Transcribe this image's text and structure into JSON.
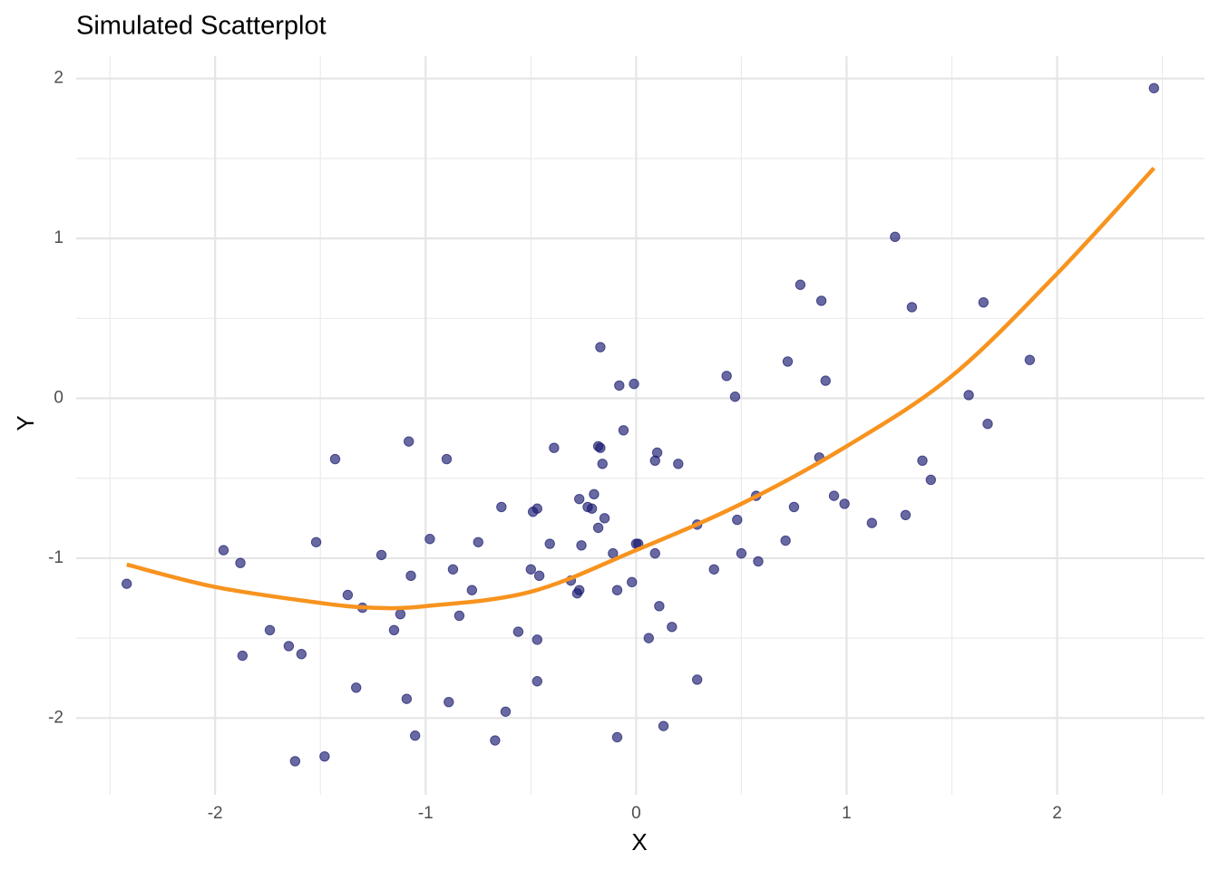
{
  "chart_data": {
    "type": "scatter",
    "title": "Simulated Scatterplot",
    "x_label": "X",
    "y_label": "Y",
    "x": [
      -2.42,
      -1.96,
      -1.88,
      -1.87,
      -1.74,
      -1.65,
      -1.62,
      -1.59,
      -1.52,
      -1.48,
      -1.43,
      -1.37,
      -1.33,
      -1.3,
      -1.21,
      -1.15,
      -1.12,
      -1.09,
      -1.08,
      -1.07,
      -1.05,
      -0.98,
      -0.9,
      -0.89,
      -0.87,
      -0.84,
      -0.78,
      -0.75,
      -0.67,
      -0.64,
      -0.62,
      -0.56,
      -0.5,
      -0.49,
      -0.47,
      -0.47,
      -0.47,
      -0.46,
      -0.41,
      -0.39,
      -0.31,
      -0.28,
      -0.27,
      -0.27,
      -0.26,
      -0.23,
      -0.21,
      -0.2,
      -0.18,
      -0.18,
      -0.17,
      -0.17,
      -0.16,
      -0.15,
      -0.11,
      -0.09,
      -0.09,
      -0.08,
      -0.06,
      -0.02,
      -0.01,
      0.0,
      0.01,
      0.06,
      0.09,
      0.09,
      0.1,
      0.11,
      0.13,
      0.17,
      0.2,
      0.29,
      0.29,
      0.37,
      0.43,
      0.47,
      0.48,
      0.5,
      0.57,
      0.58,
      0.71,
      0.72,
      0.75,
      0.78,
      0.87,
      0.88,
      0.9,
      0.94,
      0.99,
      1.12,
      1.23,
      1.28,
      1.31,
      1.36,
      1.4,
      1.58,
      1.65,
      1.67,
      1.87,
      2.46
    ],
    "values": [
      -1.16,
      -0.95,
      -1.03,
      -1.61,
      -1.45,
      -1.55,
      -2.27,
      -1.6,
      -0.9,
      -2.24,
      -0.38,
      -1.23,
      -1.81,
      -1.31,
      -0.98,
      -1.45,
      -1.35,
      -1.88,
      -0.27,
      -1.11,
      -2.11,
      -0.88,
      -0.38,
      -1.9,
      -1.07,
      -1.36,
      -1.2,
      -0.9,
      -2.14,
      -0.68,
      -1.96,
      -1.46,
      -1.07,
      -0.71,
      -0.69,
      -1.51,
      -1.77,
      -1.11,
      -0.91,
      -0.31,
      -1.14,
      -1.22,
      -1.2,
      -0.63,
      -0.92,
      -0.68,
      -0.69,
      -0.6,
      -0.81,
      -0.3,
      -0.31,
      0.32,
      -0.41,
      -0.75,
      -0.97,
      -2.12,
      -1.2,
      0.08,
      -0.2,
      -1.15,
      0.09,
      -0.91,
      -0.91,
      -1.5,
      -0.97,
      -0.39,
      -0.34,
      -1.3,
      -2.05,
      -1.43,
      -0.41,
      -1.76,
      -0.79,
      -1.07,
      0.14,
      0.01,
      -0.76,
      -0.97,
      -0.61,
      -1.02,
      -0.89,
      0.23,
      -0.68,
      0.71,
      -0.37,
      0.61,
      0.11,
      -0.61,
      -0.66,
      -0.78,
      1.01,
      -0.73,
      0.57,
      -0.39,
      -0.51,
      0.02,
      0.6,
      -0.16,
      0.24,
      1.94
    ],
    "color": "#191970",
    "curve": {
      "x": [
        -2.42,
        -2.0,
        -1.5,
        -1.25,
        -1.0,
        -0.5,
        0,
        0.5,
        1.0,
        1.5,
        2.0,
        2.46
      ],
      "values": [
        -1.04,
        -1.18,
        -1.28,
        -1.31,
        -1.3,
        -1.21,
        -0.95,
        -0.66,
        -0.3,
        0.14,
        0.78,
        1.44
      ],
      "color": "#f7931e"
    },
    "xlim": [
      -2.66,
      2.7
    ],
    "ylim": [
      -2.48,
      2.14
    ],
    "xticks": [
      -2,
      -1,
      0,
      1,
      2
    ],
    "yticks": [
      -2,
      -1,
      0,
      1,
      2
    ],
    "xticks_minor": [
      -2.5,
      -1.5,
      -0.5,
      0.5,
      1.5,
      2.5
    ],
    "yticks_minor": [
      -1.5,
      -0.5,
      0.5,
      1.5
    ],
    "grid": true
  }
}
